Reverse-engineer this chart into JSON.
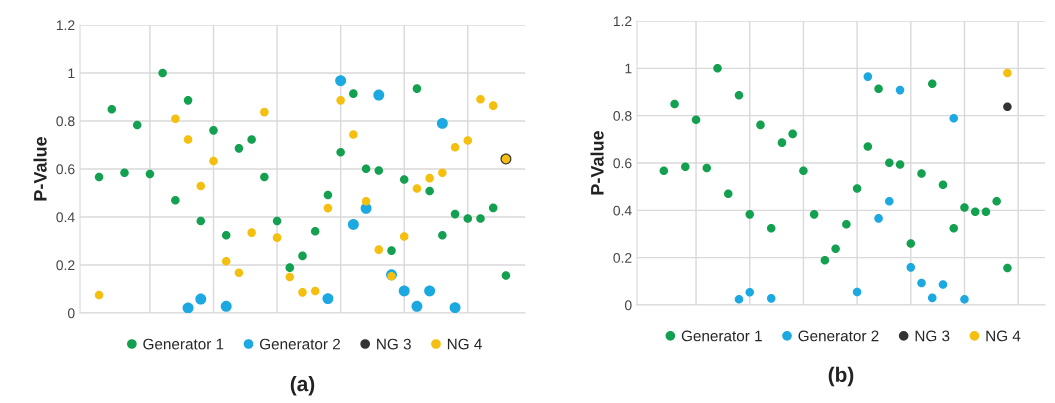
{
  "chart_data": [
    {
      "type": "scatter",
      "title": "(a)",
      "ylabel": "P-Value",
      "categories": [
        null,
        null,
        null,
        null,
        null,
        null,
        null,
        null,
        null,
        null,
        null,
        null,
        null,
        null,
        null,
        null,
        null,
        null,
        null,
        null,
        null,
        null,
        null,
        null,
        null,
        null,
        null,
        null,
        null,
        null,
        null,
        null,
        null,
        null,
        null
      ],
      "ylim": [
        0,
        1.2
      ],
      "yticks": [
        0,
        0.2,
        0.4,
        0.6,
        0.8,
        1,
        1.2
      ],
      "grid": true,
      "legend": "bottom",
      "marker": "circle",
      "series": [
        {
          "name": "Generator 1",
          "color": "#13a050",
          "values": [
            null,
            0.567,
            0.849,
            0.584,
            0.783,
            0.579,
            1.0,
            0.47,
            0.886,
            0.383,
            0.761,
            0.324,
            0.686,
            0.723,
            0.567,
            0.383,
            0.189,
            0.238,
            0.341,
            0.492,
            0.67,
            0.914,
            0.601,
            0.594,
            0.26,
            0.556,
            0.935,
            0.508,
            0.324,
            0.412,
            0.394,
            0.394,
            0.438,
            0.156,
            null
          ]
        },
        {
          "name": "Generator 2",
          "color": "#1ca8e0",
          "values": [
            null,
            null,
            null,
            null,
            null,
            null,
            null,
            null,
            0.021,
            0.058,
            null,
            0.028,
            null,
            null,
            null,
            null,
            null,
            null,
            null,
            0.06,
            0.968,
            0.369,
            0.436,
            0.908,
            0.159,
            0.092,
            0.028,
            0.092,
            0.79,
            0.022,
            null,
            null,
            null,
            null,
            null
          ]
        },
        {
          "name": "NG 3",
          "color": "#333333",
          "values": [
            null,
            null,
            null,
            null,
            null,
            null,
            null,
            null,
            null,
            null,
            null,
            null,
            null,
            null,
            null,
            null,
            null,
            null,
            null,
            null,
            null,
            null,
            null,
            null,
            null,
            null,
            null,
            null,
            null,
            null,
            null,
            null,
            null,
            0.642,
            null
          ]
        },
        {
          "name": "NG 4",
          "color": "#f5bf10",
          "values": [
            null,
            0.075,
            null,
            null,
            null,
            null,
            null,
            0.809,
            0.723,
            0.529,
            0.633,
            0.216,
            0.168,
            0.335,
            0.837,
            0.314,
            0.15,
            0.086,
            0.092,
            0.437,
            0.886,
            0.744,
            0.466,
            0.264,
            0.153,
            0.319,
            0.519,
            0.562,
            0.584,
            0.691,
            0.719,
            0.891,
            0.864,
            0.642,
            null
          ]
        }
      ]
    },
    {
      "type": "scatter",
      "title": "(b)",
      "ylabel": "P-Value",
      "categories": [
        null,
        null,
        null,
        null,
        null,
        null,
        null,
        null,
        null,
        null,
        null,
        null,
        null,
        null,
        null,
        null,
        null,
        null,
        null,
        null,
        null,
        null,
        null,
        null,
        null,
        null,
        null,
        null,
        null,
        null,
        null,
        null,
        null,
        null,
        null,
        null,
        null,
        null
      ],
      "ylim": [
        0,
        1.2
      ],
      "yticks": [
        0,
        0.2,
        0.4,
        0.6,
        0.8,
        1,
        1.2
      ],
      "grid": true,
      "legend": "bottom",
      "marker": "circle",
      "series": [
        {
          "name": "Generator 1",
          "color": "#13a050",
          "values": [
            null,
            null,
            0.567,
            0.849,
            0.584,
            0.783,
            0.579,
            1.0,
            0.47,
            0.886,
            0.383,
            0.761,
            0.324,
            0.686,
            0.723,
            0.567,
            0.383,
            0.189,
            0.238,
            0.341,
            0.492,
            0.67,
            0.914,
            0.601,
            0.594,
            0.26,
            0.556,
            0.935,
            0.508,
            0.324,
            0.412,
            0.394,
            0.394,
            0.438,
            0.156,
            null,
            null,
            null
          ]
        },
        {
          "name": "Generator 2",
          "color": "#1ca8e0",
          "values": [
            null,
            null,
            null,
            null,
            null,
            null,
            null,
            null,
            null,
            0.024,
            0.054,
            null,
            0.028,
            null,
            null,
            null,
            null,
            null,
            null,
            null,
            0.055,
            0.965,
            0.366,
            0.438,
            0.908,
            0.159,
            0.093,
            0.03,
            0.087,
            0.789,
            0.024,
            null,
            null,
            null,
            null,
            null,
            null,
            null
          ]
        },
        {
          "name": "NG 3",
          "color": "#333333",
          "values": [
            null,
            null,
            null,
            null,
            null,
            null,
            null,
            null,
            null,
            null,
            null,
            null,
            null,
            null,
            null,
            null,
            null,
            null,
            null,
            null,
            null,
            null,
            null,
            null,
            null,
            null,
            null,
            null,
            null,
            null,
            null,
            null,
            null,
            null,
            0.838,
            null,
            null,
            null
          ]
        },
        {
          "name": "NG 4",
          "color": "#f5bf10",
          "values": [
            null,
            null,
            null,
            null,
            null,
            null,
            null,
            null,
            null,
            null,
            null,
            null,
            null,
            null,
            null,
            null,
            null,
            null,
            null,
            null,
            null,
            null,
            null,
            null,
            null,
            null,
            null,
            null,
            null,
            null,
            null,
            null,
            null,
            null,
            0.98,
            null,
            null,
            null
          ]
        }
      ]
    }
  ]
}
